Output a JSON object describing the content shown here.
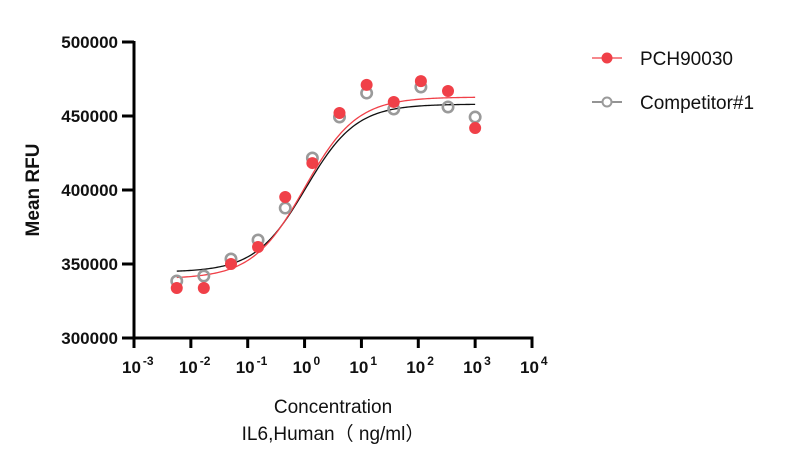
{
  "chart_data": {
    "type": "scatter",
    "title": "",
    "xlabel": "Concentration",
    "xlabel2": "IL6,Human（ ng/ml）",
    "ylabel": "Mean RFU",
    "xscale": "log",
    "xlim_log10": [
      -3,
      4
    ],
    "ylim": [
      300000,
      500000
    ],
    "yticks": [
      {
        "value": 300000,
        "label": "300000"
      },
      {
        "value": 350000,
        "label": "350000"
      },
      {
        "value": 400000,
        "label": "400000"
      },
      {
        "value": 450000,
        "label": "450000"
      },
      {
        "value": 500000,
        "label": "500000"
      }
    ],
    "xticks": [
      {
        "exp": -3,
        "base": "10",
        "sup": "-3"
      },
      {
        "exp": -2,
        "base": "10",
        "sup": "-2"
      },
      {
        "exp": -1,
        "base": "10",
        "sup": "-1"
      },
      {
        "exp": 0,
        "base": "10",
        "sup": "0"
      },
      {
        "exp": 1,
        "base": "10",
        "sup": "1"
      },
      {
        "exp": 2,
        "base": "10",
        "sup": "2"
      },
      {
        "exp": 3,
        "base": "10",
        "sup": "3"
      },
      {
        "exp": 4,
        "base": "10",
        "sup": "4"
      }
    ],
    "x": [
      0.00565,
      0.0169,
      0.0508,
      0.152,
      0.457,
      1.372,
      4.115,
      12.35,
      37.04,
      111.1,
      333.3,
      1000
    ],
    "legend_position": "top-right",
    "series": [
      {
        "name": "PCH90030",
        "color": "#f04048",
        "marker": "filled-circle",
        "values": [
          333800,
          333800,
          350000,
          361500,
          395300,
          418200,
          452000,
          471000,
          459500,
          473600,
          466900,
          441900
        ],
        "fit": {
          "bottom": 340000,
          "top": 462800,
          "ec50": 1.0,
          "hill": 0.95
        }
      },
      {
        "name": "Competitor#1",
        "color": "#9a9a9a",
        "line_color": "#111111",
        "marker": "open-circle",
        "values": [
          338500,
          341900,
          353400,
          366200,
          387800,
          421600,
          449300,
          465500,
          454700,
          469600,
          456100,
          449300
        ],
        "fit": {
          "bottom": 344500,
          "top": 458000,
          "ec50": 1.05,
          "hill": 0.98
        }
      }
    ]
  }
}
